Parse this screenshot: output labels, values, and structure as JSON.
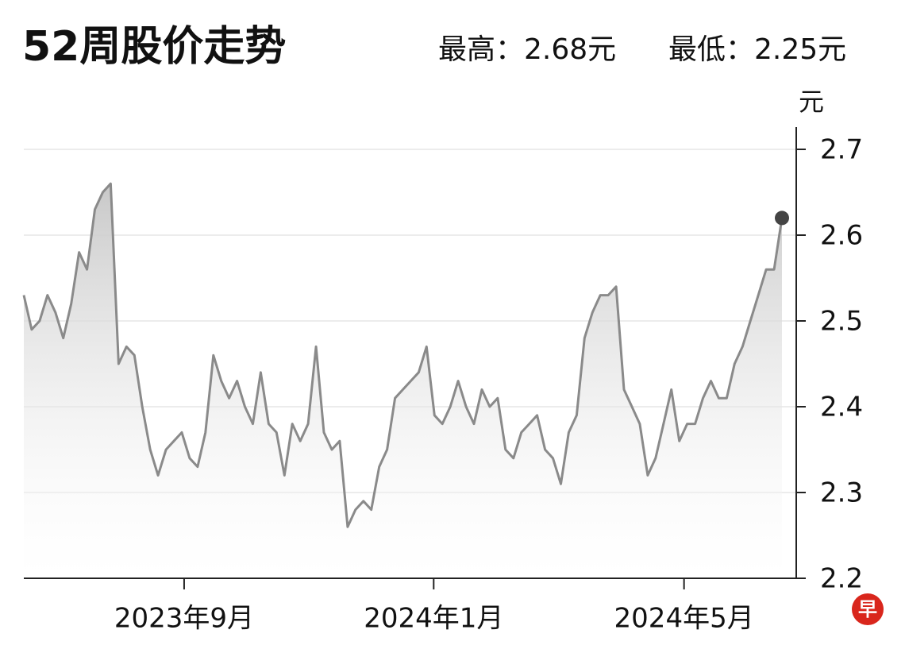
{
  "chart_data": {
    "type": "line",
    "title": "52周股价走势",
    "high_label": "最高：2.68元",
    "low_label": "最低：2.25元",
    "y_unit": "元",
    "logo": "早",
    "color": "#8a8a8a",
    "x": [
      0,
      1,
      2,
      3,
      4,
      5,
      6,
      7,
      8,
      9,
      10,
      11,
      12,
      13,
      14,
      15,
      16,
      17,
      18,
      19,
      20,
      21,
      22,
      23,
      24,
      25,
      26,
      27,
      28,
      29,
      30,
      31,
      32,
      33,
      34,
      35,
      36,
      37,
      38,
      39,
      40,
      41,
      42,
      43,
      44,
      45,
      46,
      47,
      48,
      49,
      50,
      51,
      52,
      53,
      54,
      55,
      56,
      57,
      58,
      59,
      60,
      61,
      62,
      63,
      64,
      65,
      66,
      67,
      68,
      69,
      70,
      71,
      72,
      73,
      74,
      75,
      76,
      77,
      78,
      79,
      80,
      81,
      82,
      83,
      84,
      85,
      86,
      87,
      88,
      89,
      90,
      91,
      92,
      93,
      94,
      95,
      96
    ],
    "values": [
      2.53,
      2.49,
      2.5,
      2.53,
      2.51,
      2.48,
      2.52,
      2.58,
      2.56,
      2.63,
      2.65,
      2.66,
      2.45,
      2.47,
      2.46,
      2.4,
      2.35,
      2.32,
      2.35,
      2.36,
      2.37,
      2.34,
      2.33,
      2.37,
      2.46,
      2.43,
      2.41,
      2.43,
      2.4,
      2.38,
      2.44,
      2.38,
      2.37,
      2.32,
      2.38,
      2.36,
      2.38,
      2.47,
      2.37,
      2.35,
      2.36,
      2.26,
      2.28,
      2.29,
      2.28,
      2.33,
      2.35,
      2.41,
      2.42,
      2.43,
      2.44,
      2.47,
      2.39,
      2.38,
      2.4,
      2.43,
      2.4,
      2.38,
      2.42,
      2.4,
      2.41,
      2.35,
      2.34,
      2.37,
      2.38,
      2.39,
      2.35,
      2.34,
      2.31,
      2.37,
      2.39,
      2.48,
      2.51,
      2.53,
      2.53,
      2.54,
      2.42,
      2.4,
      2.38,
      2.32,
      2.34,
      2.38,
      2.42,
      2.36,
      2.38,
      2.38,
      2.41,
      2.43,
      2.41,
      2.41,
      2.45,
      2.47,
      2.5,
      2.53,
      2.56,
      2.56,
      2.62
    ],
    "xlim": [
      0,
      96
    ],
    "xticks": [
      {
        "value": 20.3,
        "label": "2023年9月"
      },
      {
        "value": 51.9,
        "label": "2024年1月"
      },
      {
        "value": 83.6,
        "label": "2024年5月"
      }
    ],
    "ylim": [
      2.2,
      2.7
    ],
    "yticks": [
      2.2,
      2.3,
      2.4,
      2.5,
      2.6,
      2.7
    ],
    "grid": true,
    "last_point_marker": true
  }
}
